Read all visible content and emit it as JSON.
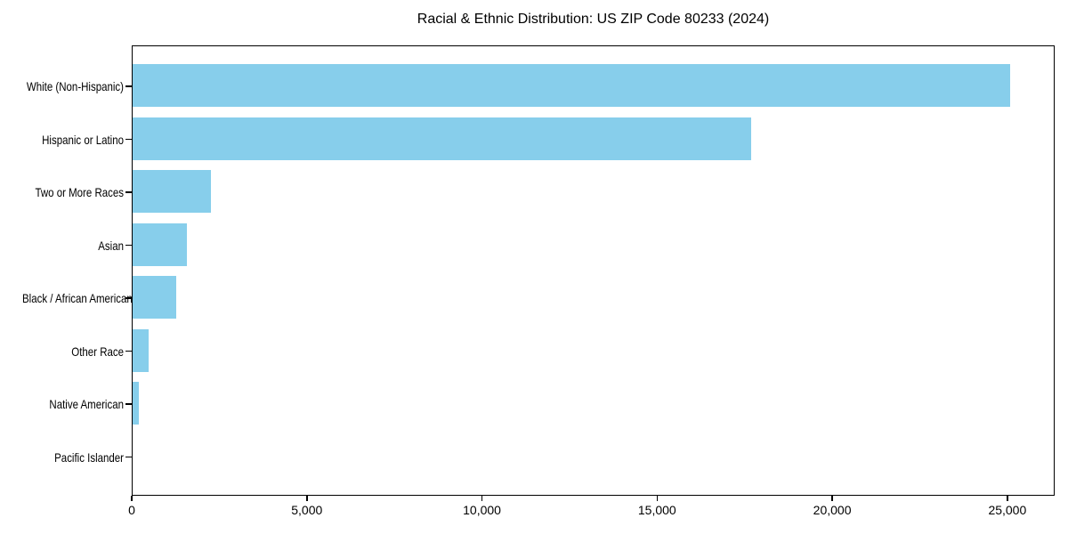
{
  "chart_data": {
    "type": "bar",
    "orientation": "horizontal",
    "title": "Racial & Ethnic Distribution: US ZIP Code 80233 (2024)",
    "categories": [
      "White (Non-Hispanic)",
      "Hispanic or Latino",
      "Two or More Races",
      "Asian",
      "Black / African American",
      "Other Race",
      "Native American",
      "Pacific Islander"
    ],
    "values": [
      25100,
      17700,
      2250,
      1550,
      1250,
      450,
      175,
      0
    ],
    "xlabel": "",
    "ylabel": "",
    "xlim": [
      0,
      26350
    ],
    "x_ticks": [
      0,
      5000,
      10000,
      15000,
      20000,
      25000
    ],
    "x_tick_labels": [
      "0",
      "5,000",
      "10,000",
      "15,000",
      "20,000",
      "25,000"
    ],
    "bar_color": "#87CEEB",
    "axis_color": "#000000",
    "text_color": "#000000",
    "background_color": "#ffffff",
    "grid": false,
    "legend": false,
    "value_labels_shown": false
  }
}
